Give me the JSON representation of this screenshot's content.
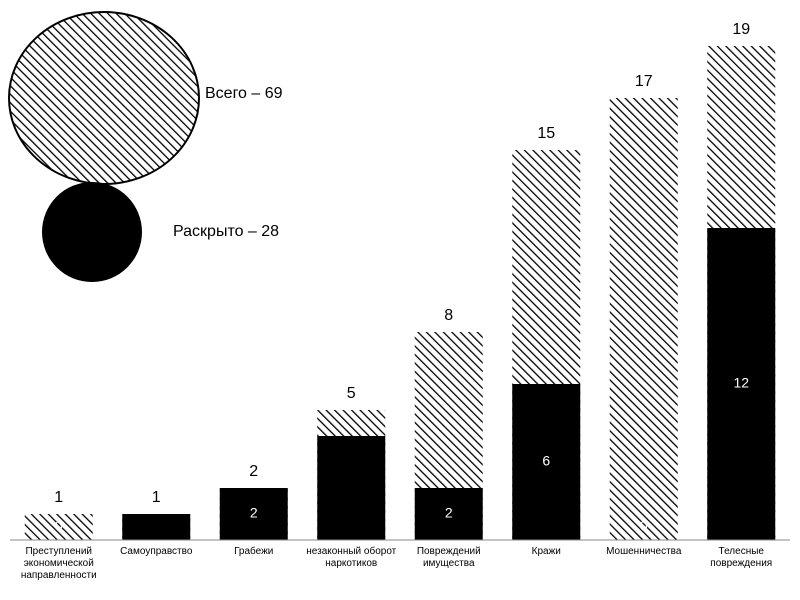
{
  "chart_data": {
    "type": "bar",
    "categories": [
      "Преступлений экономической направленности",
      "Самоуправство",
      "Грабежи",
      "незаконный оборот наркотиков",
      "Повреждений имущества",
      "Кражи",
      "Мошенничества",
      "Телесные повреждения"
    ],
    "series": [
      {
        "name": "Всего – 69",
        "color": "#000000",
        "pattern": "hatch",
        "values": [
          1,
          1,
          2,
          5,
          8,
          15,
          17,
          19
        ]
      },
      {
        "name": "Раскрыто – 28",
        "color": "#000000",
        "values": [
          0,
          1,
          2,
          4,
          2,
          6,
          0,
          12
        ],
        "value_labels": [
          "0",
          null,
          "2",
          null,
          "2",
          "6",
          "0",
          "12"
        ]
      }
    ],
    "ylim": [
      0,
      20
    ]
  }
}
